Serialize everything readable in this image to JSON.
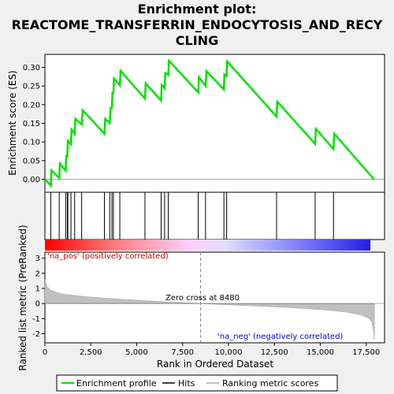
{
  "title_lines": [
    "Enrichment plot:",
    "REACTOME_TRANSFERRIN_ENDOCYTOSIS_AND_RECY",
    "CLING"
  ],
  "chart_data": {
    "type": "line",
    "x_label": "Rank in Ordered Dataset",
    "x_ticks": [
      0,
      2500,
      5000,
      7500,
      10000,
      12500,
      15000,
      17500
    ],
    "x_range": [
      0,
      18500
    ],
    "top_panel": {
      "ylabel": "Enrichment score (ES)",
      "ylim": [
        -0.035,
        0.335
      ],
      "y_ticks": [
        0.0,
        0.05,
        0.1,
        0.15,
        0.2,
        0.25,
        0.3
      ],
      "y_tick_labels": [
        "0.00",
        "0.05",
        "0.10",
        "0.15",
        "0.20",
        "0.25",
        "0.30"
      ],
      "series_name": "Enrichment profile",
      "line_color": "#00e000",
      "profile": [
        [
          0,
          0.0
        ],
        [
          320,
          -0.017
        ],
        [
          360,
          0.024
        ],
        [
          780,
          0.003
        ],
        [
          820,
          0.042
        ],
        [
          1130,
          0.023
        ],
        [
          1160,
          0.062
        ],
        [
          1220,
          0.062
        ],
        [
          1250,
          0.103
        ],
        [
          1420,
          0.094
        ],
        [
          1450,
          0.133
        ],
        [
          1620,
          0.122
        ],
        [
          1660,
          0.162
        ],
        [
          2000,
          0.147
        ],
        [
          2060,
          0.185
        ],
        [
          3240,
          0.122
        ],
        [
          3290,
          0.162
        ],
        [
          3530,
          0.151
        ],
        [
          3580,
          0.191
        ],
        [
          3650,
          0.191
        ],
        [
          3680,
          0.232
        ],
        [
          3730,
          0.232
        ],
        [
          3760,
          0.27
        ],
        [
          4080,
          0.252
        ],
        [
          4120,
          0.291
        ],
        [
          5450,
          0.216
        ],
        [
          5490,
          0.257
        ],
        [
          6330,
          0.211
        ],
        [
          6360,
          0.253
        ],
        [
          6520,
          0.245
        ],
        [
          6560,
          0.285
        ],
        [
          6720,
          0.28
        ],
        [
          6760,
          0.318
        ],
        [
          8350,
          0.233
        ],
        [
          8390,
          0.274
        ],
        [
          8750,
          0.25
        ],
        [
          8800,
          0.29
        ],
        [
          9750,
          0.241
        ],
        [
          9780,
          0.281
        ],
        [
          9900,
          0.277
        ],
        [
          9930,
          0.316
        ],
        [
          12620,
          0.168
        ],
        [
          12660,
          0.208
        ],
        [
          14720,
          0.095
        ],
        [
          14760,
          0.135
        ],
        [
          15720,
          0.081
        ],
        [
          15760,
          0.122
        ],
        [
          17920,
          0.0
        ]
      ]
    },
    "hits": [
      320,
      780,
      1130,
      1220,
      1250,
      1420,
      1620,
      2000,
      3240,
      3530,
      3650,
      3730,
      4080,
      5450,
      6330,
      6520,
      6720,
      8350,
      8750,
      9750,
      9900,
      12620,
      14720,
      15720
    ],
    "colorbar": {
      "stops": [
        "#ff0000",
        "#ff8080",
        "#ffd0ff",
        "#e0e0ff",
        "#8080ff",
        "#2020e0"
      ],
      "stop_positions": [
        0.0,
        0.22,
        0.45,
        0.55,
        0.78,
        1.0
      ]
    },
    "bottom_panel": {
      "ylabel": "Ranked list metric (PreRanked)",
      "ylim": [
        -2.6,
        3.4
      ],
      "y_ticks": [
        -2,
        -1,
        0,
        1,
        2,
        3
      ],
      "y_tick_labels": [
        "-2",
        "-1",
        "0",
        "1",
        "2",
        "3"
      ],
      "series_name": "Ranking metric scores",
      "fill_color": "#c0c0c0",
      "metric": [
        [
          0,
          1.6
        ],
        [
          100,
          1.15
        ],
        [
          300,
          0.9
        ],
        [
          600,
          0.75
        ],
        [
          1000,
          0.62
        ],
        [
          1500,
          0.55
        ],
        [
          2000,
          0.48
        ],
        [
          3000,
          0.38
        ],
        [
          4000,
          0.3
        ],
        [
          5000,
          0.22
        ],
        [
          6000,
          0.15
        ],
        [
          7000,
          0.09
        ],
        [
          8000,
          0.03
        ],
        [
          8480,
          0.0
        ],
        [
          9500,
          -0.06
        ],
        [
          11000,
          -0.14
        ],
        [
          12500,
          -0.22
        ],
        [
          14000,
          -0.32
        ],
        [
          15500,
          -0.45
        ],
        [
          16500,
          -0.58
        ],
        [
          17200,
          -0.75
        ],
        [
          17600,
          -0.95
        ],
        [
          17800,
          -1.2
        ],
        [
          17900,
          -1.8
        ],
        [
          17950,
          -2.4
        ]
      ],
      "zero_cross": 8480,
      "zero_cross_text": "Zero cross at 8480",
      "pos_label": "'na_pos' (positively correlated)",
      "neg_label": "'na_neg' (negatively correlated)"
    },
    "legend": [
      "Enrichment profile",
      "Hits",
      "Ranking metric scores"
    ]
  }
}
